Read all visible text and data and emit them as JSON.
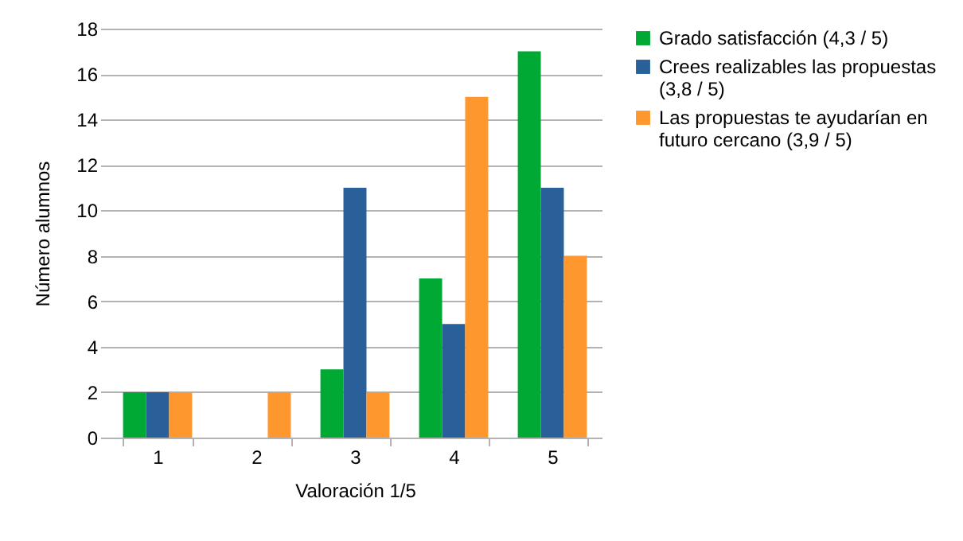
{
  "chart_data": {
    "type": "bar",
    "xlabel": "Valoración 1/5",
    "ylabel": "Número alumnos",
    "categories": [
      "1",
      "2",
      "3",
      "4",
      "5"
    ],
    "series": [
      {
        "name": "Grado satisfacción (4,3 / 5)",
        "color": "#00a933",
        "values": [
          2,
          0,
          3,
          7,
          17
        ]
      },
      {
        "name": "Crees realizables las propuestas (3,8 / 5)",
        "color": "#2a6099",
        "values": [
          2,
          0,
          11,
          5,
          11
        ]
      },
      {
        "name": "Las propuestas te ayudarían en futuro cercano (3,9 / 5)",
        "color": "#ff972f",
        "values": [
          2,
          2,
          2,
          15,
          8
        ]
      }
    ],
    "ylim": [
      0,
      18
    ],
    "yticks": [
      0,
      2,
      4,
      6,
      8,
      10,
      12,
      14,
      16,
      18
    ],
    "grid": "y",
    "legend": "right"
  }
}
